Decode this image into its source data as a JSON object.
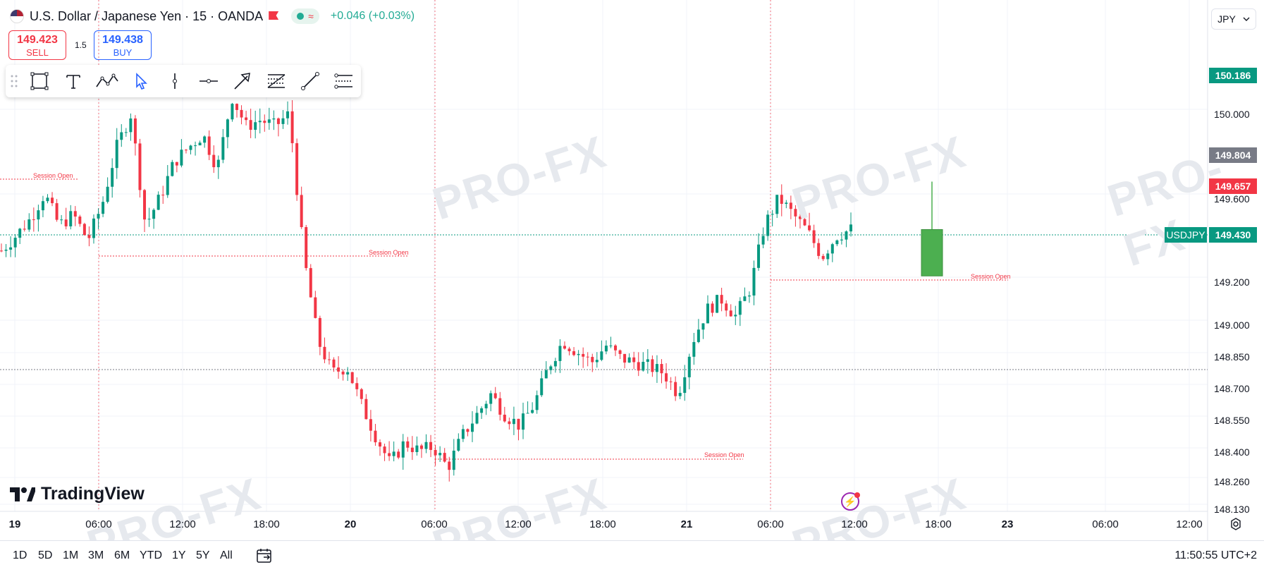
{
  "header": {
    "symbol_title": "U.S. Dollar / Japanese Yen · 15 · OANDA",
    "change": "+0.046 (+0.03%)"
  },
  "trade": {
    "sell_price": "149.423",
    "sell_label": "SELL",
    "spread": "1.5",
    "buy_price": "149.438",
    "buy_label": "BUY"
  },
  "currency_selector": {
    "value": "JPY"
  },
  "price_axis": {
    "labels": [
      "150.000",
      "149.600",
      "149.200",
      "149.000",
      "148.850",
      "148.700",
      "148.550",
      "148.400",
      "148.260",
      "148.130"
    ],
    "tags": [
      {
        "text": "150.186",
        "color": "#089981"
      },
      {
        "text": "149.804",
        "color": "#787b86"
      },
      {
        "text": "149.657",
        "color": "#f23645"
      },
      {
        "text": "149.430",
        "color": "#089981"
      }
    ],
    "symbol_tag": "USDJPY"
  },
  "time_axis": {
    "labels": [
      {
        "text": "19",
        "bold": true
      },
      {
        "text": "06:00",
        "bold": false
      },
      {
        "text": "12:00",
        "bold": false
      },
      {
        "text": "18:00",
        "bold": false
      },
      {
        "text": "20",
        "bold": true
      },
      {
        "text": "06:00",
        "bold": false
      },
      {
        "text": "12:00",
        "bold": false
      },
      {
        "text": "18:00",
        "bold": false
      },
      {
        "text": "21",
        "bold": true
      },
      {
        "text": "06:00",
        "bold": false
      },
      {
        "text": "12:00",
        "bold": false
      },
      {
        "text": "18:00",
        "bold": false
      },
      {
        "text": "23",
        "bold": true
      },
      {
        "text": "06:00",
        "bold": false
      },
      {
        "text": "12:00",
        "bold": false
      }
    ]
  },
  "session_label": "Session Open",
  "logo_text": "TradingView",
  "watermark_text": "PRO-FX",
  "ranges": [
    "1D",
    "5D",
    "1M",
    "3M",
    "6M",
    "YTD",
    "1Y",
    "5Y",
    "All"
  ],
  "clock": "11:50:55 UTC+2",
  "toolbar_icons": [
    "drag-handle-icon",
    "rectangle-icon",
    "text-icon",
    "path-icon",
    "cursor-icon",
    "vertical-line-icon",
    "horizontal-ray-icon",
    "arrow-icon",
    "fib-retracement-icon",
    "trend-line-icon",
    "parallel-channel-icon"
  ],
  "colors": {
    "up": "#089981",
    "down": "#f23645",
    "forecast": "#4caf50",
    "accent": "#2962ff"
  },
  "chart_data": {
    "type": "candlestick",
    "symbol": "USDJPY",
    "interval": "15",
    "ylim": [
      148.13,
      150.186
    ],
    "close_path": [
      [
        "19 00:00",
        149.33
      ],
      [
        "19 01:00",
        149.4
      ],
      [
        "19 02:00",
        149.48
      ],
      [
        "19 03:00",
        149.6
      ],
      [
        "19 04:00",
        149.45
      ],
      [
        "19 05:00",
        149.5
      ],
      [
        "19 06:00",
        149.38
      ],
      [
        "19 07:00",
        149.55
      ],
      [
        "19 08:00",
        149.82
      ],
      [
        "19 09:00",
        149.98
      ],
      [
        "19 10:00",
        149.45
      ],
      [
        "19 11:00",
        149.58
      ],
      [
        "19 12:00",
        149.75
      ],
      [
        "19 13:00",
        149.82
      ],
      [
        "19 14:00",
        149.88
      ],
      [
        "19 15:00",
        149.72
      ],
      [
        "19 16:00",
        150.06
      ],
      [
        "19 17:00",
        149.92
      ],
      [
        "19 18:00",
        149.95
      ],
      [
        "19 19:00",
        149.92
      ],
      [
        "19 20:00",
        149.98
      ],
      [
        "19 21:00",
        149.3
      ],
      [
        "19 22:00",
        148.9
      ],
      [
        "19 23:00",
        148.75
      ],
      [
        "20 00:00",
        148.78
      ],
      [
        "20 01:00",
        148.6
      ],
      [
        "20 02:00",
        148.45
      ],
      [
        "20 03:00",
        148.32
      ],
      [
        "20 04:00",
        148.42
      ],
      [
        "20 05:00",
        148.38
      ],
      [
        "20 06:00",
        148.4
      ],
      [
        "20 07:00",
        148.3
      ],
      [
        "20 08:00",
        148.45
      ],
      [
        "20 09:00",
        148.55
      ],
      [
        "20 10:00",
        148.65
      ],
      [
        "20 11:00",
        148.55
      ],
      [
        "20 12:00",
        148.5
      ],
      [
        "20 13:00",
        148.6
      ],
      [
        "20 14:00",
        148.78
      ],
      [
        "20 15:00",
        148.9
      ],
      [
        "20 16:00",
        148.85
      ],
      [
        "20 17:00",
        148.8
      ],
      [
        "20 18:00",
        148.88
      ],
      [
        "20 19:00",
        148.82
      ],
      [
        "20 20:00",
        148.8
      ],
      [
        "20 21:00",
        148.78
      ],
      [
        "20 22:00",
        148.75
      ],
      [
        "20 23:00",
        148.65
      ],
      [
        "21 00:00",
        148.9
      ],
      [
        "21 01:00",
        149.05
      ],
      [
        "21 02:00",
        149.1
      ],
      [
        "21 03:00",
        149.02
      ],
      [
        "21 04:00",
        149.15
      ],
      [
        "21 05:00",
        149.45
      ],
      [
        "21 06:00",
        149.58
      ],
      [
        "21 07:00",
        149.5
      ],
      [
        "21 08:00",
        149.42
      ],
      [
        "21 09:00",
        149.3
      ],
      [
        "21 10:00",
        149.4
      ],
      [
        "21 11:00",
        149.43
      ]
    ],
    "forecast_candle": {
      "open": 149.21,
      "close": 149.43,
      "high": 149.657,
      "low": 149.21
    }
  }
}
